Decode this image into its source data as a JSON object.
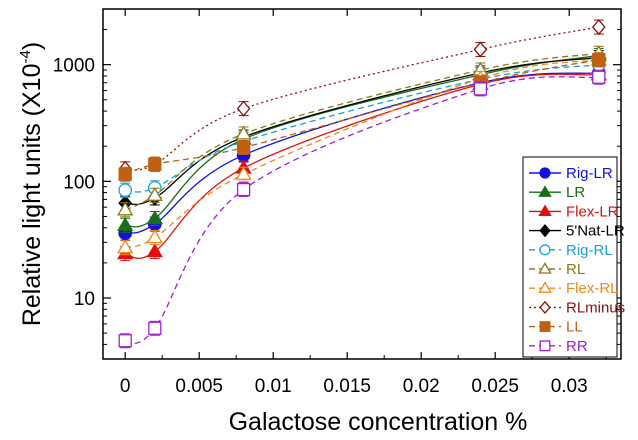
{
  "chart_data": {
    "type": "line",
    "xlabel": "Galactose concentration %",
    "ylabel": "Relative light units (X10",
    "ylabel_exp": "-4",
    "ylabel_close": ")",
    "y_scale": "log",
    "xlim": [
      -0.0015,
      0.0335
    ],
    "ylim": [
      3,
      3000
    ],
    "x_ticks": [
      {
        "v": 0,
        "label": "0"
      },
      {
        "v": 0.005,
        "label": "0.005"
      },
      {
        "v": 0.01,
        "label": "0.01"
      },
      {
        "v": 0.015,
        "label": "0.015"
      },
      {
        "v": 0.02,
        "label": "0.02"
      },
      {
        "v": 0.025,
        "label": "0.025"
      },
      {
        "v": 0.03,
        "label": "0.03"
      }
    ],
    "y_ticks": [
      {
        "v": 10,
        "label": "10"
      },
      {
        "v": 100,
        "label": "100"
      },
      {
        "v": 1000,
        "label": "1000"
      }
    ],
    "legend_position": "right",
    "x": [
      0,
      0.002,
      0.008,
      0.024,
      0.032
    ],
    "series": [
      {
        "name": "Rig-LR",
        "color": "#1010e0",
        "dash": "solid",
        "marker": "circle",
        "fill": true,
        "values": [
          36,
          43,
          168,
          700,
          850
        ]
      },
      {
        "name": "LR",
        "color": "#1a6e1a",
        "dash": "solid",
        "marker": "triangle",
        "fill": true,
        "values": [
          42,
          48,
          230,
          820,
          1200
        ]
      },
      {
        "name": "Flex-LR",
        "color": "#e01010",
        "dash": "solid",
        "marker": "triangle",
        "fill": true,
        "values": [
          24,
          25,
          130,
          680,
          820
        ]
      },
      {
        "name": "5'Nat-LR",
        "color": "#000000",
        "dash": "solid",
        "marker": "diamond",
        "fill": true,
        "values": [
          65,
          72,
          240,
          850,
          1150
        ]
      },
      {
        "name": "Rig-RL",
        "color": "#1aa0d8",
        "dash": "dash",
        "marker": "circle",
        "fill": false,
        "values": [
          84,
          88,
          220,
          750,
          1000
        ]
      },
      {
        "name": "RL",
        "color": "#8a7a1a",
        "dash": "dash",
        "marker": "triangle",
        "fill": false,
        "values": [
          57,
          76,
          255,
          900,
          1250
        ]
      },
      {
        "name": "Flex-RL",
        "color": "#f08a1a",
        "dash": "dash",
        "marker": "triangle",
        "fill": false,
        "values": [
          27,
          33,
          115,
          760,
          1100
        ]
      },
      {
        "name": "RLminus",
        "color": "#8b1010",
        "dash": "dot",
        "marker": "diamond",
        "fill": false,
        "values": [
          128,
          140,
          420,
          1350,
          2100
        ]
      },
      {
        "name": "LL",
        "color": "#c06010",
        "dash": "dash",
        "marker": "square",
        "fill": true,
        "values": [
          115,
          140,
          195,
          700,
          1100
        ]
      },
      {
        "name": "RR",
        "color": "#a020d0",
        "dash": "dash",
        "marker": "square",
        "fill": false,
        "values": [
          4.3,
          5.5,
          85,
          620,
          780
        ]
      }
    ]
  }
}
